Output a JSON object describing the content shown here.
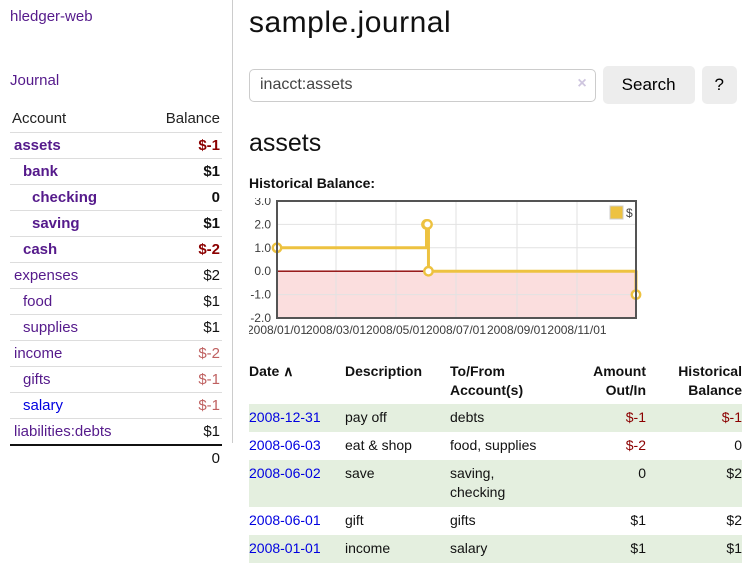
{
  "app": {
    "title": "hledger-web"
  },
  "sidebar": {
    "nav": {
      "journal": "Journal"
    },
    "accounts_table": {
      "headers": {
        "account": "Account",
        "balance": "Balance"
      },
      "rows": [
        {
          "name": "assets",
          "balance": "$-1"
        },
        {
          "name": "bank",
          "balance": "$1"
        },
        {
          "name": "checking",
          "balance": "0"
        },
        {
          "name": "saving",
          "balance": "$1"
        },
        {
          "name": "cash",
          "balance": "$-2"
        },
        {
          "name": "expenses",
          "balance": "$2"
        },
        {
          "name": "food",
          "balance": "$1"
        },
        {
          "name": "supplies",
          "balance": "$1"
        },
        {
          "name": "income",
          "balance": "$-2"
        },
        {
          "name": "gifts",
          "balance": "$-1"
        },
        {
          "name": "salary",
          "balance": "$-1"
        },
        {
          "name": "liabilities:debts",
          "balance": "$1"
        }
      ],
      "total": "0"
    }
  },
  "header": {
    "title": "sample.journal"
  },
  "search": {
    "query": "inacct:assets",
    "clear_icon": "×",
    "button_label": "Search",
    "help_label": "?"
  },
  "account_page": {
    "title": "assets",
    "chart_label": "Historical Balance:"
  },
  "chart_data": {
    "type": "line",
    "title": "Historical Balance",
    "legend_position": "top-right",
    "grid": true,
    "x_ticks": [
      "2008/01/01",
      "2008/03/01",
      "2008/05/01",
      "2008/07/01",
      "2008/09/01",
      "2008/11/01"
    ],
    "y_ticks": [
      3.0,
      2.0,
      1.0,
      0.0,
      -1.0,
      -2.0
    ],
    "ylim": [
      -2,
      3
    ],
    "xlim": [
      "2008-01-01",
      "2008-12-31"
    ],
    "series": [
      {
        "name": "$",
        "color": "#edc240",
        "step": true,
        "points": [
          [
            "2008-01-01",
            1
          ],
          [
            "2008-06-01",
            2
          ],
          [
            "2008-06-02",
            2
          ],
          [
            "2008-06-03",
            0
          ],
          [
            "2008-12-31",
            -1
          ]
        ]
      }
    ],
    "negative_region_color": "#fbdede",
    "zero_line_color": "#8b0000",
    "grid_color": "#e2e2e2",
    "border_color": "#545454"
  },
  "register": {
    "headers": {
      "date": "Date",
      "sort_icon": "∧",
      "description": "Description",
      "accounts": "To/From Account(s)",
      "amount": "Amount Out/In",
      "balance": "Historical Balance"
    },
    "rows": [
      {
        "date": "2008-12-31",
        "description": "pay off",
        "accounts": "debts",
        "amount": "$-1",
        "balance": "$-1"
      },
      {
        "date": "2008-06-03",
        "description": "eat & shop",
        "accounts": "food, supplies",
        "amount": "$-2",
        "balance": "0"
      },
      {
        "date": "2008-06-02",
        "description": "save",
        "accounts": "saving, checking",
        "amount": "0",
        "balance": "$2"
      },
      {
        "date": "2008-06-01",
        "description": "gift",
        "accounts": "gifts",
        "amount": "$1",
        "balance": "$2"
      },
      {
        "date": "2008-01-01",
        "description": "income",
        "accounts": "salary",
        "amount": "$1",
        "balance": "$1"
      }
    ]
  }
}
